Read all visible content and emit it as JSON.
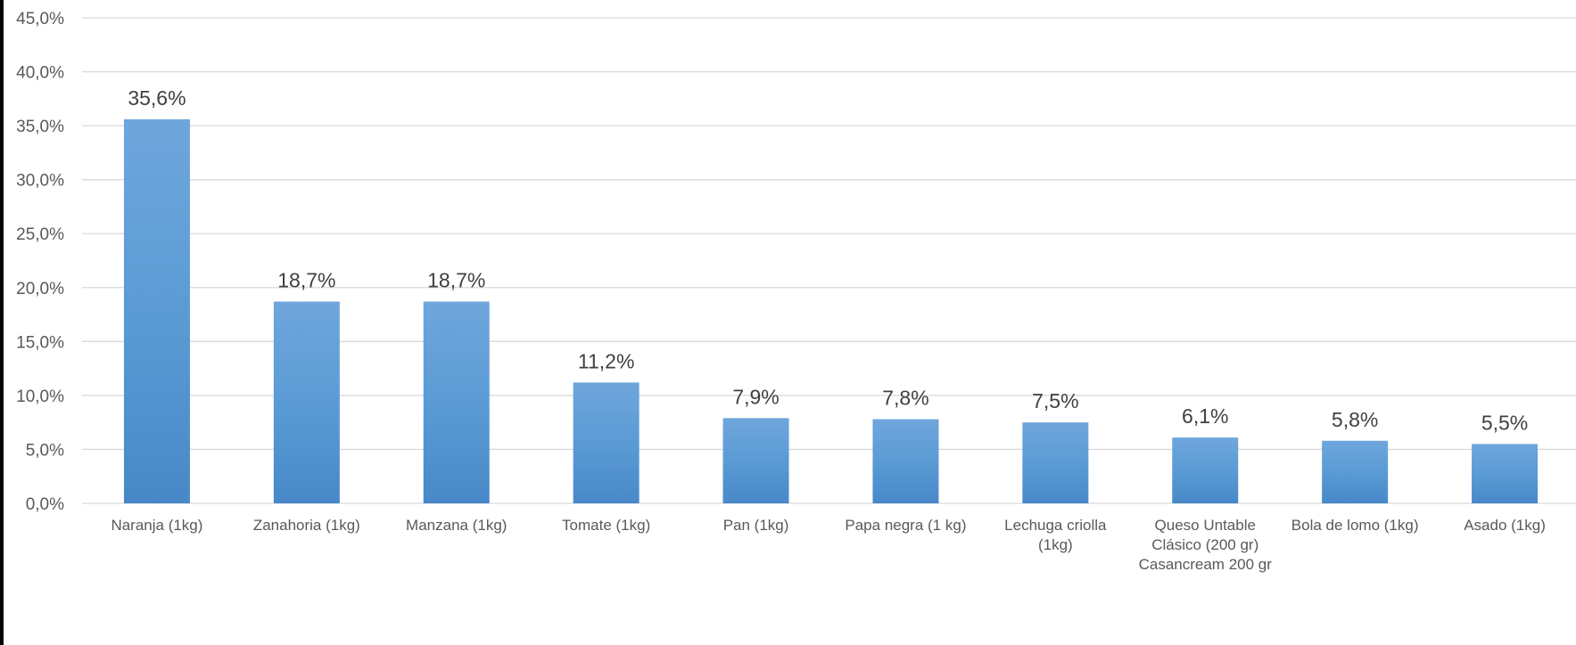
{
  "chart_data": {
    "type": "bar",
    "title": "",
    "xlabel": "",
    "ylabel": "",
    "ylim": [
      0,
      45
    ],
    "yticks": [
      "0,0%",
      "5,0%",
      "10,0%",
      "15,0%",
      "20,0%",
      "25,0%",
      "30,0%",
      "35,0%",
      "40,0%",
      "45,0%"
    ],
    "grid": true,
    "legend": "none",
    "bar_color": "#5b9bd5",
    "categories": [
      [
        "Naranja (1kg)"
      ],
      [
        "Zanahoria (1kg)"
      ],
      [
        "Manzana (1kg)"
      ],
      [
        "Tomate (1kg)"
      ],
      [
        "Pan (1kg)"
      ],
      [
        "Papa negra (1 kg)"
      ],
      [
        "Lechuga criolla",
        "(1kg)"
      ],
      [
        "Queso Untable",
        "Clásico (200 gr)",
        "Casancream 200 gr"
      ],
      [
        "Bola de lomo (1kg)"
      ],
      [
        "Asado (1kg)"
      ]
    ],
    "values": [
      35.6,
      18.7,
      18.7,
      11.2,
      7.9,
      7.8,
      7.5,
      6.1,
      5.8,
      5.5
    ],
    "data_labels": [
      "35,6%",
      "18,7%",
      "18,7%",
      "11,2%",
      "7,9%",
      "7,8%",
      "7,5%",
      "6,1%",
      "5,8%",
      "5,5%"
    ]
  }
}
